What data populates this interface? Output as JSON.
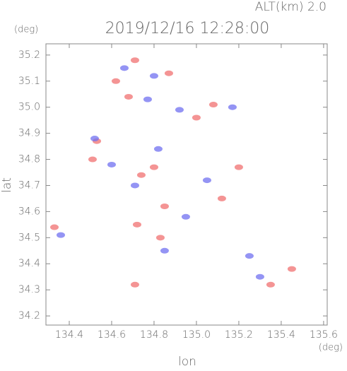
{
  "chart_data": {
    "type": "scatter",
    "title": "2019/12/16 12:28:00",
    "subtitle": "ALT(km) 2.0",
    "y_unit": "(deg)",
    "x_unit": "(deg)",
    "xlabel": "lon",
    "ylabel": "lat",
    "xlim": [
      134.29,
      135.617
    ],
    "ylim": [
      34.165,
      35.243
    ],
    "xticks": [
      134.4,
      134.6,
      134.8,
      {
        "value": 135,
        "label": "135.0"
      },
      135.2,
      135.4,
      135.6
    ],
    "yticks": [
      34.2,
      34.3,
      34.4,
      34.5,
      34.6,
      34.7,
      34.8,
      34.9,
      {
        "value": 35,
        "label": "35.0"
      },
      35.1,
      35.2
    ],
    "series": [
      {
        "color": "#f07070",
        "x": [
          134.71,
          134.87,
          134.62,
          134.68,
          134.53,
          134.51,
          134.8,
          134.74,
          135.2,
          134.83,
          134.72,
          134.33,
          135.45,
          135.35,
          134.71,
          135.08,
          135.0,
          134.85,
          135.12
        ],
        "values": [
          35.18,
          35.13,
          35.1,
          35.04,
          34.87,
          34.8,
          34.77,
          34.74,
          34.77,
          34.5,
          34.55,
          34.54,
          34.38,
          34.32,
          34.32,
          35.01,
          34.96,
          34.62,
          34.65
        ]
      },
      {
        "color": "#7070f0",
        "x": [
          134.66,
          134.8,
          134.77,
          134.52,
          134.82,
          134.71,
          135.05,
          134.95,
          134.85,
          135.3,
          134.36,
          135.17,
          134.92,
          134.6,
          135.25
        ],
        "values": [
          35.15,
          35.12,
          35.03,
          34.88,
          34.84,
          34.7,
          34.72,
          34.58,
          34.45,
          34.35,
          34.51,
          35.0,
          34.99,
          34.78,
          34.43
        ]
      }
    ]
  }
}
